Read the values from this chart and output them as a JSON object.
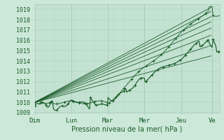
{
  "title": "",
  "xlabel": "Pression niveau de la mer( hPa )",
  "ylabel": "",
  "bg_color": "#cce8d8",
  "plot_bg_color": "#cce8d8",
  "grid_color": "#aaccbb",
  "line_color": "#1a5c2a",
  "text_color": "#1a5c2a",
  "ylim": [
    1009,
    1019.5
  ],
  "yticks": [
    1009,
    1010,
    1011,
    1012,
    1013,
    1014,
    1015,
    1016,
    1017,
    1018,
    1019
  ],
  "days": [
    "Dim",
    "Lun",
    "Mar",
    "Mer",
    "Jeu",
    "Ve"
  ],
  "day_positions": [
    0,
    1,
    2,
    3,
    4,
    4.85
  ],
  "xlim": [
    0,
    5.05
  ],
  "forecast_ends_x": 4.82,
  "forecast_lines": [
    [
      1010.0,
      1019.2
    ],
    [
      1010.0,
      1018.8
    ],
    [
      1010.0,
      1018.3
    ],
    [
      1010.0,
      1017.8
    ],
    [
      1010.0,
      1017.2
    ],
    [
      1010.0,
      1016.5
    ],
    [
      1010.0,
      1015.5
    ],
    [
      1010.0,
      1014.5
    ]
  ]
}
